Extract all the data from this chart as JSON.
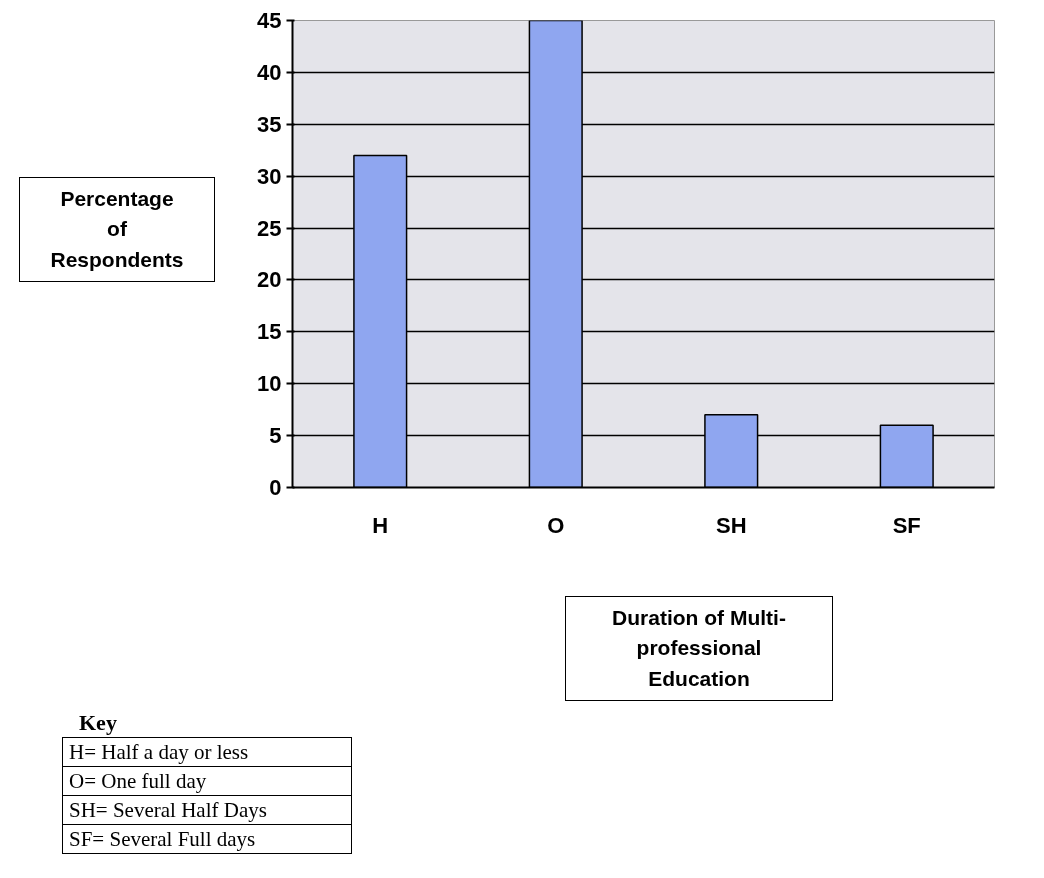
{
  "chart_data": {
    "type": "bar",
    "categories": [
      "H",
      "O",
      "SH",
      "SF"
    ],
    "values": [
      32,
      45,
      7,
      6
    ],
    "color": "#8fa6f0",
    "ylim": [
      0,
      45
    ],
    "yticks": [
      0,
      5,
      10,
      15,
      20,
      25,
      30,
      35,
      40,
      45
    ],
    "grid": "y",
    "ylabel": "Percentage of Respondents",
    "xlabel": "Duration of Multi-professional Education",
    "annotations": [
      "Key",
      "H= Half a day or less",
      "O= One full day",
      "SH= Several Half Days",
      "SF= Several Full days"
    ]
  }
}
